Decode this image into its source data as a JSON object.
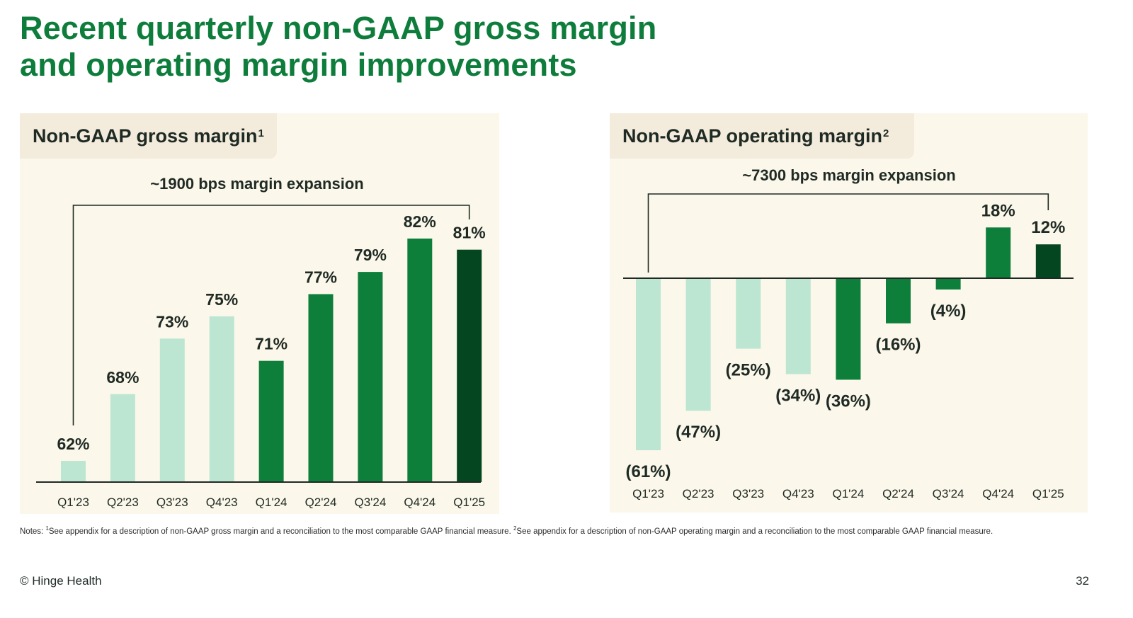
{
  "title": {
    "line1": "Recent quarterly non-GAAP gross margin",
    "line2": "and operating margin improvements"
  },
  "colors": {
    "title": "#0e7d3c",
    "light": "#bce6d1",
    "mid": "#0d7f3b",
    "dark": "#03461f",
    "panel_bg": "#fbf7ea",
    "tab_bg": "#f3ecdc"
  },
  "gross_panel": {
    "heading": "Non-GAAP gross margin",
    "footnote": "1"
  },
  "operating_panel": {
    "heading": "Non-GAAP operating margin",
    "footnote": "2"
  },
  "chart_data": [
    {
      "type": "bar",
      "title": "Non-GAAP gross margin",
      "annotation": "~1900 bps margin expansion",
      "categories": [
        "Q1'23",
        "Q2'23",
        "Q3'23",
        "Q4'23",
        "Q1'24",
        "Q2'24",
        "Q3'24",
        "Q4'24",
        "Q1'25"
      ],
      "values": [
        62,
        68,
        73,
        75,
        71,
        77,
        79,
        82,
        81
      ],
      "labels": [
        "62%",
        "68%",
        "73%",
        "75%",
        "71%",
        "77%",
        "79%",
        "82%",
        "81%"
      ],
      "color_groups": [
        "light",
        "light",
        "light",
        "light",
        "mid",
        "mid",
        "mid",
        "mid",
        "dark"
      ],
      "unit": "%",
      "ylim": [
        55,
        85
      ],
      "grid": false
    },
    {
      "type": "bar",
      "title": "Non-GAAP operating margin",
      "annotation": "~7300 bps margin expansion",
      "categories": [
        "Q1'23",
        "Q2'23",
        "Q3'23",
        "Q4'23",
        "Q1'24",
        "Q2'24",
        "Q3'24",
        "Q4'24",
        "Q1'25"
      ],
      "values": [
        -61,
        -47,
        -25,
        -34,
        -36,
        -16,
        -4,
        18,
        12
      ],
      "labels": [
        "(61%)",
        "(47%)",
        "(25%)",
        "(34%)",
        "(36%)",
        "(16%)",
        "(4%)",
        "18%",
        "12%"
      ],
      "color_groups": [
        "light",
        "light",
        "light",
        "light",
        "mid",
        "mid",
        "mid",
        "mid",
        "dark"
      ],
      "unit": "%",
      "ylim": [
        -61,
        18
      ],
      "grid": false
    }
  ],
  "notes": {
    "prefix": "Notes: ",
    "sup1": "1",
    "text1": "See appendix for a description of non-GAAP gross margin and a reconciliation to the most comparable GAAP financial measure. ",
    "sup2": "2",
    "text2": "See appendix for a description of non-GAAP operating margin and a reconciliation to the most comparable GAAP financial measure."
  },
  "footer": {
    "brand": "© Hinge Health",
    "page_number": "32"
  }
}
